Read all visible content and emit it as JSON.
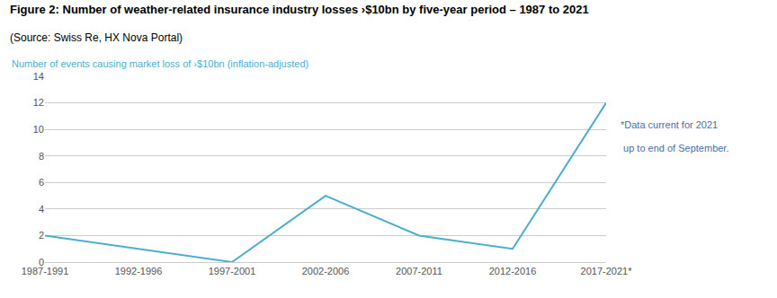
{
  "chart_data": {
    "type": "line",
    "title": "Figure 2: Number of weather-related insurance industry losses ›$10bn by five-year period – 1987 to 2021",
    "subtitle": "(Source: Swiss Re, HX Nova Portal)",
    "ylabel": "Number of events causing market loss of ›$10bn (inflation-adjusted)",
    "annotations": [
      "*Data current for 2021",
      " up to end of September."
    ],
    "categories": [
      "1987-1991",
      "1992-1996",
      "1997-2001",
      "2002-2006",
      "2007-2011",
      "2012-2016",
      "2017-2021*"
    ],
    "values": [
      2,
      1,
      0,
      5,
      2,
      1,
      12
    ],
    "color": "#4baecb",
    "ylim": [
      0,
      14
    ],
    "yticks": [
      0,
      2,
      4,
      6,
      8,
      10,
      12,
      14
    ],
    "grid": true
  }
}
